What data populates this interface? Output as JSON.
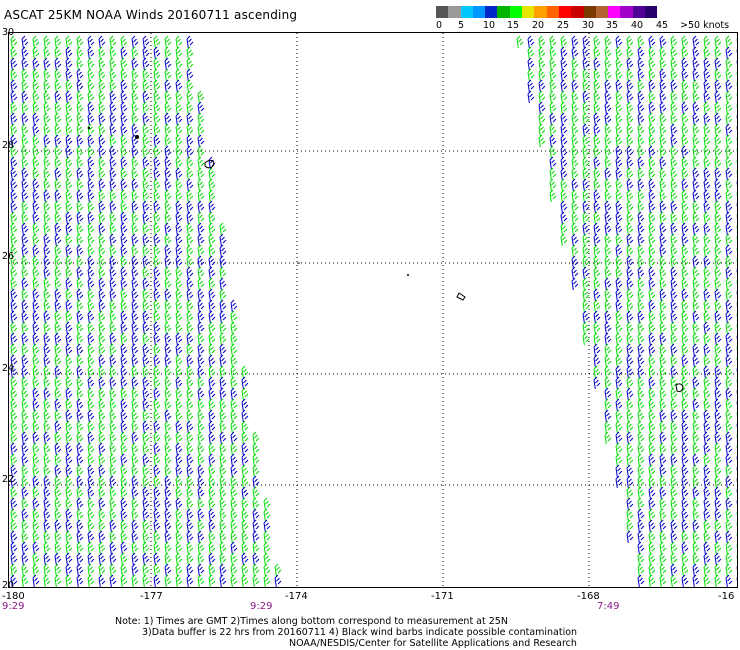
{
  "title": "ASCAT 25KM NOAA Winds 20160711 ascending",
  "legend": {
    "labels": [
      "0",
      "5",
      "10",
      "15",
      "20",
      "25",
      "30",
      "35",
      "40",
      "45",
      ">50 knots"
    ],
    "colors": [
      "#555555",
      "#999999",
      "#00c8ff",
      "#0096ff",
      "#0028c8",
      "#00b400",
      "#00ff00",
      "#e6e600",
      "#ffa000",
      "#ff6400",
      "#ff0000",
      "#c80000",
      "#7a3a00",
      "#b46432",
      "#ff00ff",
      "#a000c8",
      "#500096",
      "#28006e"
    ]
  },
  "map": {
    "lat_range": [
      20,
      30
    ],
    "lon_range": [
      -180,
      -165
    ],
    "lat_labels": [
      "30",
      "28",
      "26",
      "24",
      "22",
      "20"
    ],
    "lon_labels": [
      "-180",
      "-177",
      "-174",
      "-171",
      "-168",
      "-16"
    ],
    "swath_colors": {
      "blue": "#0000c8",
      "green": "#00dc00",
      "dark": "#000000"
    }
  },
  "time_labels": [
    "9:29",
    "9:29",
    "7:49"
  ],
  "notes": [
    "Note: 1) Times are GMT 2)Times along bottom correspond to measurement at 25N",
    "3)Data buffer is 22 hrs from 20160711 4) Black wind barbs indicate possible contamination",
    "NOAA/NESDIS/Center for Satellite Applications and Research"
  ]
}
